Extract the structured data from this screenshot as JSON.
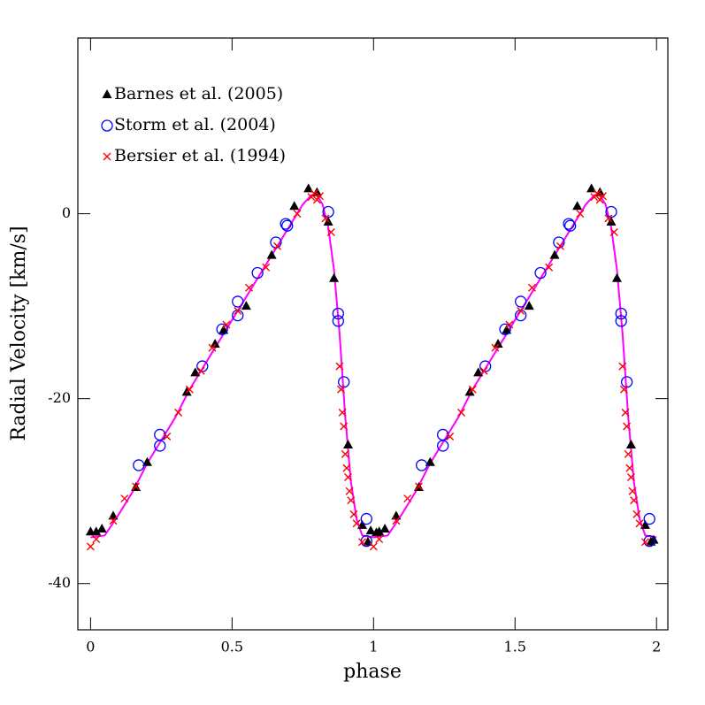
{
  "chart_data": {
    "type": "scatter",
    "x_label": "phase",
    "y_label": "Radial Velocity [km/s]",
    "xlim": [
      -0.045,
      2.04
    ],
    "ylim": [
      -45,
      19
    ],
    "xticks": [
      0,
      0.5,
      1,
      1.5,
      2
    ],
    "yticks": [
      -40,
      -20,
      0
    ],
    "series": [
      {
        "name": "Barnes et al. (2005)",
        "color": "#000000",
        "marker": "triangle",
        "x": [
          0.0,
          0.02,
          0.04,
          0.08,
          0.16,
          0.2,
          0.34,
          0.37,
          0.44,
          0.47,
          0.55,
          0.64,
          0.72,
          0.77,
          0.8,
          0.84,
          0.86,
          0.91,
          0.96,
          0.98,
          0.99,
          1.01,
          1.02,
          1.04,
          1.08,
          1.16,
          1.2,
          1.34,
          1.37,
          1.44,
          1.47,
          1.55,
          1.64,
          1.72,
          1.77,
          1.8,
          1.84,
          1.86,
          1.91,
          1.96,
          1.98,
          1.99
        ],
        "values": [
          -34.4,
          -34.4,
          -34.1,
          -32.7,
          -29.6,
          -26.9,
          -19.3,
          -17.2,
          -14.1,
          -12.6,
          -10.0,
          -4.5,
          0.8,
          2.7,
          2.3,
          -0.9,
          -7.0,
          -25.0,
          -33.7,
          -35.5,
          -34.3,
          -34.5,
          -34.4,
          -34.1,
          -32.7,
          -29.6,
          -26.9,
          -19.3,
          -17.2,
          -14.1,
          -12.6,
          -10.0,
          -4.5,
          0.8,
          2.7,
          2.3,
          -0.9,
          -7.0,
          -25.0,
          -33.7,
          -35.5,
          -35.3
        ]
      },
      {
        "name": "Storm et al. (2004)",
        "color": "#0000ff",
        "marker": "circle",
        "x": [
          0.17,
          0.245,
          0.245,
          0.395,
          0.465,
          0.52,
          0.52,
          0.59,
          0.655,
          0.69,
          0.695,
          0.84,
          0.875,
          0.875,
          0.895,
          0.975,
          0.975,
          1.17,
          1.245,
          1.245,
          1.395,
          1.465,
          1.52,
          1.52,
          1.59,
          1.655,
          1.69,
          1.695,
          1.84,
          1.875,
          1.875,
          1.895,
          1.975,
          1.975
        ],
        "values": [
          -27.2,
          -23.9,
          -25.1,
          -16.5,
          -12.5,
          -9.5,
          -11.0,
          -6.4,
          -3.1,
          -1.1,
          -1.3,
          0.2,
          -10.8,
          -11.6,
          -18.2,
          -33.0,
          -35.4,
          -27.2,
          -23.9,
          -25.1,
          -16.5,
          -12.5,
          -9.5,
          -11.0,
          -6.4,
          -3.1,
          -1.1,
          -1.3,
          0.2,
          -10.8,
          -11.6,
          -18.2,
          -33.0,
          -35.4
        ]
      },
      {
        "name": "Bersier et al. (1994)",
        "color": "#ff0000",
        "marker": "cross",
        "x": [
          0.0,
          0.02,
          0.08,
          0.12,
          0.16,
          0.27,
          0.31,
          0.35,
          0.39,
          0.43,
          0.48,
          0.52,
          0.56,
          0.62,
          0.66,
          0.73,
          0.78,
          0.79,
          0.8,
          0.81,
          0.83,
          0.85,
          0.88,
          0.885,
          0.89,
          0.895,
          0.9,
          0.905,
          0.91,
          0.915,
          0.92,
          0.93,
          0.94,
          0.96,
          1.0,
          1.02,
          1.08,
          1.12,
          1.16,
          1.27,
          1.31,
          1.35,
          1.39,
          1.43,
          1.48,
          1.52,
          1.56,
          1.62,
          1.66,
          1.73,
          1.78,
          1.79,
          1.8,
          1.81,
          1.83,
          1.85,
          1.88,
          1.885,
          1.89,
          1.895,
          1.9,
          1.905,
          1.91,
          1.915,
          1.92,
          1.93,
          1.94,
          1.96
        ],
        "values": [
          -36.0,
          -35.2,
          -33.2,
          -30.8,
          -29.5,
          -24.1,
          -21.5,
          -19.0,
          -17.0,
          -14.5,
          -12.0,
          -10.5,
          -8.0,
          -5.8,
          -3.5,
          0.0,
          1.8,
          2.2,
          1.5,
          1.9,
          -0.5,
          -2.0,
          -16.5,
          -19.0,
          -21.5,
          -23.0,
          -26.0,
          -27.5,
          -28.5,
          -30.0,
          -31.0,
          -32.5,
          -33.5,
          -35.5,
          -36.0,
          -35.2,
          -33.2,
          -30.8,
          -29.5,
          -24.1,
          -21.5,
          -19.0,
          -17.0,
          -14.5,
          -12.0,
          -10.5,
          -8.0,
          -5.8,
          -3.5,
          0.0,
          1.8,
          2.2,
          1.5,
          1.9,
          -0.5,
          -2.0,
          -16.5,
          -19.0,
          -21.5,
          -23.0,
          -26.0,
          -27.5,
          -28.5,
          -30.0,
          -31.0,
          -32.5,
          -33.5,
          -35.5
        ]
      }
    ],
    "fit": {
      "color": "#ff00ff",
      "x": [
        0,
        0.05,
        0.1,
        0.15,
        0.2,
        0.25,
        0.3,
        0.35,
        0.4,
        0.45,
        0.5,
        0.55,
        0.6,
        0.65,
        0.7,
        0.75,
        0.78,
        0.8,
        0.82,
        0.84,
        0.86,
        0.88,
        0.9,
        0.92,
        0.94,
        0.96,
        1.0,
        1.05,
        1.1,
        1.15,
        1.2,
        1.25,
        1.3,
        1.35,
        1.4,
        1.45,
        1.5,
        1.55,
        1.6,
        1.65,
        1.7,
        1.75,
        1.78,
        1.8,
        1.82,
        1.84,
        1.86,
        1.88,
        1.9,
        1.92,
        1.94,
        1.96,
        2.0
      ],
      "values": [
        -35,
        -34.8,
        -32.5,
        -30,
        -27,
        -24.5,
        -22,
        -19,
        -16.5,
        -14,
        -11.5,
        -9,
        -6.5,
        -4,
        -1.5,
        1,
        2,
        2,
        1,
        -1.5,
        -6,
        -13,
        -22,
        -29,
        -33,
        -34.8,
        -35,
        -34.8,
        -32.5,
        -30,
        -27,
        -24.5,
        -22,
        -19,
        -16.5,
        -14,
        -11.5,
        -9,
        -6.5,
        -4,
        -1.5,
        1,
        2,
        2,
        1,
        -1.5,
        -6,
        -13,
        -22,
        -29,
        -33,
        -34.8,
        -35
      ]
    }
  }
}
